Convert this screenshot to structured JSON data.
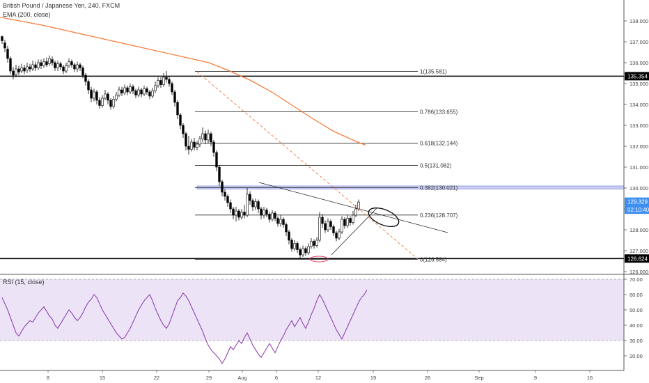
{
  "header": {
    "title": "British Pound / Japanese Yen, 240, FXCM",
    "indicator": "EMA (200, close)"
  },
  "rsi_panel": {
    "label": "RSI (15, close)"
  },
  "colors": {
    "candle": "#000000",
    "ema": "#f57c3a",
    "trend_dashed": "#f08050",
    "rsi_line": "#8e44ad",
    "rsi_band": "#ece3f7",
    "fib_band": "#c9cdf2",
    "price_badge": "#000000",
    "current_badge": "#3d8ff0",
    "ellipse_low": "#e04060"
  },
  "price_labels": {
    "level": "135.354",
    "low": "126.624",
    "current": "129.329",
    "countdown": "02:10:40"
  },
  "chart_data": {
    "type": "candlestick",
    "series": "GBP/JPY 240",
    "ylim": [
      125.8,
      138.8
    ],
    "price_ticks": [
      "126.000",
      "127.000",
      "128.000",
      "129.000",
      "130.000",
      "131.000",
      "132.000",
      "133.000",
      "134.000",
      "135.000",
      "136.000",
      "137.000",
      "138.000"
    ],
    "rsi_ticks": [
      "20.00",
      "30.00",
      "40.00",
      "50.00",
      "60.00",
      "70.00"
    ],
    "rsi_ylim": [
      12,
      72
    ],
    "rsi_band": [
      30,
      70
    ],
    "x_ticks": [
      "8",
      "15",
      "22",
      "29",
      "Aug",
      "6",
      "12",
      "19",
      "26",
      "Sep",
      "9",
      "16"
    ],
    "fib_levels": [
      {
        "label": "1(135.581)",
        "value": 135.581
      },
      {
        "label": "0.786(133.655)",
        "value": 133.655
      },
      {
        "label": "0.618(132.144)",
        "value": 132.144
      },
      {
        "label": "0.5(131.082)",
        "value": 131.082
      },
      {
        "label": "0.382(130.021)",
        "value": 130.021
      },
      {
        "label": "0.236(128.707)",
        "value": 128.707
      },
      {
        "label": "0(126.584)",
        "value": 126.584
      }
    ],
    "horizontal_levels": [
      135.354,
      126.624
    ],
    "ohlc": [
      [
        137.25,
        137.05,
        137.3,
        136.9
      ],
      [
        136.95,
        136.7,
        137.1,
        136.5
      ],
      [
        136.65,
        136.2,
        136.8,
        136.0
      ],
      [
        136.2,
        135.6,
        136.3,
        135.45
      ],
      [
        135.6,
        135.4,
        135.8,
        135.2
      ],
      [
        135.45,
        135.7,
        135.9,
        135.3
      ],
      [
        135.7,
        135.55,
        135.85,
        135.4
      ],
      [
        135.6,
        135.75,
        135.95,
        135.5
      ],
      [
        135.75,
        135.6,
        135.9,
        135.45
      ],
      [
        135.65,
        135.8,
        136.0,
        135.5
      ],
      [
        135.8,
        135.7,
        135.95,
        135.55
      ],
      [
        135.7,
        135.9,
        136.1,
        135.6
      ],
      [
        135.9,
        135.75,
        136.05,
        135.6
      ],
      [
        135.75,
        136.0,
        136.15,
        135.65
      ],
      [
        136.0,
        135.85,
        136.15,
        135.7
      ],
      [
        135.85,
        136.05,
        136.2,
        135.75
      ],
      [
        136.05,
        135.9,
        136.25,
        135.8
      ],
      [
        135.95,
        136.2,
        136.35,
        135.85
      ],
      [
        136.15,
        136.0,
        136.3,
        135.85
      ],
      [
        136.0,
        135.75,
        136.1,
        135.6
      ],
      [
        135.75,
        135.95,
        136.1,
        135.6
      ],
      [
        135.95,
        135.8,
        136.05,
        135.65
      ],
      [
        135.8,
        135.6,
        135.9,
        135.45
      ],
      [
        135.6,
        135.85,
        136.0,
        135.5
      ],
      [
        135.85,
        136.05,
        136.2,
        135.75
      ],
      [
        136.05,
        135.9,
        136.15,
        135.75
      ],
      [
        135.9,
        135.7,
        136.0,
        135.55
      ],
      [
        135.7,
        135.9,
        136.05,
        135.55
      ],
      [
        135.9,
        135.75,
        136.0,
        135.6
      ],
      [
        135.75,
        135.4,
        135.85,
        135.25
      ],
      [
        135.4,
        135.1,
        135.5,
        134.9
      ],
      [
        135.1,
        134.7,
        135.2,
        134.5
      ],
      [
        134.7,
        134.3,
        134.85,
        134.1
      ],
      [
        134.3,
        134.6,
        134.75,
        134.15
      ],
      [
        134.6,
        134.2,
        134.7,
        134.0
      ],
      [
        134.2,
        133.95,
        134.35,
        133.8
      ],
      [
        133.95,
        134.3,
        134.45,
        133.85
      ],
      [
        134.3,
        134.5,
        134.7,
        134.2
      ],
      [
        134.5,
        134.2,
        134.6,
        134.0
      ],
      [
        134.2,
        133.9,
        134.3,
        133.75
      ],
      [
        133.9,
        134.25,
        134.4,
        133.8
      ],
      [
        134.25,
        134.45,
        134.6,
        134.15
      ],
      [
        134.45,
        134.7,
        134.85,
        134.35
      ],
      [
        134.7,
        134.55,
        134.85,
        134.4
      ],
      [
        134.55,
        134.8,
        134.95,
        134.45
      ],
      [
        134.8,
        134.6,
        134.9,
        134.45
      ],
      [
        134.6,
        134.85,
        135.0,
        134.5
      ],
      [
        134.85,
        134.65,
        134.95,
        134.5
      ],
      [
        134.65,
        134.45,
        134.75,
        134.3
      ],
      [
        134.45,
        134.7,
        134.85,
        134.35
      ],
      [
        134.7,
        134.5,
        134.8,
        134.35
      ],
      [
        134.5,
        134.75,
        134.9,
        134.4
      ],
      [
        134.75,
        134.6,
        134.85,
        134.45
      ],
      [
        134.6,
        134.4,
        134.7,
        134.25
      ],
      [
        134.4,
        134.65,
        134.8,
        134.3
      ],
      [
        134.65,
        134.9,
        135.1,
        134.55
      ],
      [
        134.9,
        135.15,
        135.3,
        134.8
      ],
      [
        135.15,
        134.95,
        135.3,
        134.8
      ],
      [
        134.95,
        135.3,
        135.5,
        134.85
      ],
      [
        135.3,
        135.2,
        135.6,
        135.05
      ],
      [
        135.2,
        135.0,
        135.35,
        134.85
      ],
      [
        135.0,
        134.6,
        135.1,
        134.45
      ],
      [
        134.6,
        134.1,
        134.7,
        133.9
      ],
      [
        134.1,
        133.5,
        134.2,
        133.3
      ],
      [
        133.5,
        133.0,
        133.6,
        132.8
      ],
      [
        133.0,
        132.6,
        133.1,
        132.4
      ],
      [
        132.6,
        132.0,
        132.7,
        131.8
      ],
      [
        132.0,
        131.85,
        132.5,
        131.6
      ],
      [
        131.85,
        132.2,
        132.35,
        131.75
      ],
      [
        132.2,
        131.95,
        132.4,
        131.8
      ],
      [
        131.95,
        132.1,
        132.25,
        131.8
      ],
      [
        132.1,
        132.35,
        132.5,
        131.95
      ],
      [
        132.35,
        132.6,
        132.9,
        132.2
      ],
      [
        132.6,
        132.3,
        132.75,
        132.1
      ],
      [
        132.3,
        132.6,
        132.8,
        132.15
      ],
      [
        132.6,
        132.2,
        132.7,
        132.0
      ],
      [
        132.2,
        131.7,
        132.3,
        131.5
      ],
      [
        131.7,
        131.0,
        131.8,
        130.8
      ],
      [
        131.0,
        130.3,
        131.1,
        130.1
      ],
      [
        130.3,
        129.8,
        130.4,
        129.6
      ],
      [
        129.8,
        129.6,
        129.95,
        129.4
      ],
      [
        129.6,
        129.3,
        129.7,
        129.1
      ],
      [
        129.3,
        129.0,
        129.45,
        128.8
      ],
      [
        129.0,
        128.7,
        129.1,
        128.5
      ],
      [
        128.7,
        128.9,
        129.1,
        128.4
      ],
      [
        128.9,
        128.6,
        129.0,
        128.45
      ],
      [
        128.6,
        128.85,
        129.0,
        128.5
      ],
      [
        128.85,
        128.7,
        129.2,
        128.55
      ],
      [
        128.7,
        129.7,
        130.0,
        128.6
      ],
      [
        129.7,
        129.4,
        129.85,
        129.2
      ],
      [
        129.4,
        129.1,
        129.5,
        128.9
      ],
      [
        129.1,
        129.35,
        129.5,
        128.95
      ],
      [
        129.35,
        129.0,
        129.45,
        128.8
      ],
      [
        129.0,
        128.7,
        129.1,
        128.5
      ],
      [
        128.7,
        128.95,
        129.1,
        128.55
      ],
      [
        128.95,
        128.75,
        129.05,
        128.6
      ],
      [
        128.75,
        128.5,
        128.85,
        128.35
      ],
      [
        128.5,
        128.8,
        128.95,
        128.4
      ],
      [
        128.8,
        128.55,
        128.9,
        128.4
      ],
      [
        128.55,
        128.3,
        128.65,
        128.15
      ],
      [
        128.3,
        128.5,
        128.7,
        128.15
      ],
      [
        128.5,
        128.25,
        128.6,
        128.1
      ],
      [
        128.25,
        127.9,
        128.35,
        127.7
      ],
      [
        127.9,
        127.5,
        128.0,
        127.3
      ],
      [
        127.5,
        127.1,
        127.6,
        126.95
      ],
      [
        127.1,
        127.35,
        127.5,
        127.0
      ],
      [
        127.35,
        127.05,
        127.45,
        126.9
      ],
      [
        127.05,
        126.8,
        127.15,
        126.6
      ],
      [
        126.8,
        127.1,
        127.25,
        126.7
      ],
      [
        127.1,
        126.9,
        127.2,
        126.75
      ],
      [
        126.9,
        127.2,
        127.35,
        126.8
      ],
      [
        127.2,
        127.45,
        127.6,
        127.1
      ],
      [
        127.45,
        127.25,
        127.55,
        127.1
      ],
      [
        127.25,
        127.5,
        127.65,
        127.15
      ],
      [
        127.5,
        128.6,
        128.85,
        127.4
      ],
      [
        128.6,
        128.3,
        128.75,
        128.1
      ],
      [
        128.3,
        128.0,
        128.45,
        127.85
      ],
      [
        128.0,
        128.4,
        128.55,
        127.9
      ],
      [
        128.4,
        128.15,
        128.5,
        128.0
      ],
      [
        128.15,
        127.85,
        128.25,
        127.7
      ],
      [
        127.85,
        127.6,
        127.95,
        127.45
      ],
      [
        127.6,
        127.9,
        128.05,
        127.5
      ],
      [
        127.9,
        128.5,
        128.65,
        127.8
      ],
      [
        128.5,
        128.2,
        128.6,
        128.05
      ],
      [
        128.2,
        128.55,
        128.7,
        128.1
      ],
      [
        128.55,
        128.35,
        128.65,
        128.2
      ],
      [
        128.35,
        128.7,
        128.9,
        128.25
      ],
      [
        128.7,
        129.0,
        129.2,
        128.6
      ],
      [
        129.0,
        129.33,
        129.45,
        128.9
      ]
    ],
    "ema200": [
      [
        -20,
        138.3
      ],
      [
        20,
        138.05
      ],
      [
        60,
        137.8
      ],
      [
        100,
        137.5
      ],
      [
        140,
        137.2
      ],
      [
        180,
        136.9
      ],
      [
        220,
        136.6
      ],
      [
        260,
        136.3
      ],
      [
        300,
        136.0
      ],
      [
        330,
        135.6
      ],
      [
        360,
        135.15
      ],
      [
        390,
        134.6
      ],
      [
        420,
        133.95
      ],
      [
        450,
        133.3
      ],
      [
        480,
        132.7
      ],
      [
        510,
        132.25
      ],
      [
        525,
        132.05
      ]
    ],
    "rsi": [
      58,
      54,
      50,
      45,
      40,
      35,
      33,
      36,
      39,
      41,
      43,
      42,
      45,
      48,
      50,
      52,
      49,
      46,
      44,
      40,
      38,
      41,
      44,
      47,
      50,
      48,
      45,
      43,
      45,
      48,
      52,
      55,
      57,
      60,
      58,
      54,
      50,
      47,
      44,
      41,
      38,
      35,
      33,
      31,
      32,
      35,
      38,
      42,
      46,
      50,
      53,
      56,
      58,
      60,
      56,
      51,
      47,
      43,
      40,
      38,
      41,
      46,
      51,
      56,
      58,
      61,
      59,
      56,
      52,
      48,
      44,
      40,
      36,
      31,
      27,
      24,
      22,
      20,
      18,
      15,
      18,
      22,
      26,
      24,
      27,
      30,
      28,
      32,
      35,
      31,
      27,
      24,
      21,
      19,
      22,
      25,
      28,
      25,
      22,
      26,
      30,
      33,
      37,
      40,
      43,
      39,
      42,
      45,
      41,
      38,
      42,
      47,
      51,
      56,
      60,
      57,
      53,
      49,
      45,
      41,
      37,
      34,
      31,
      35,
      39,
      43,
      47,
      51,
      55,
      58,
      60,
      63
    ]
  }
}
